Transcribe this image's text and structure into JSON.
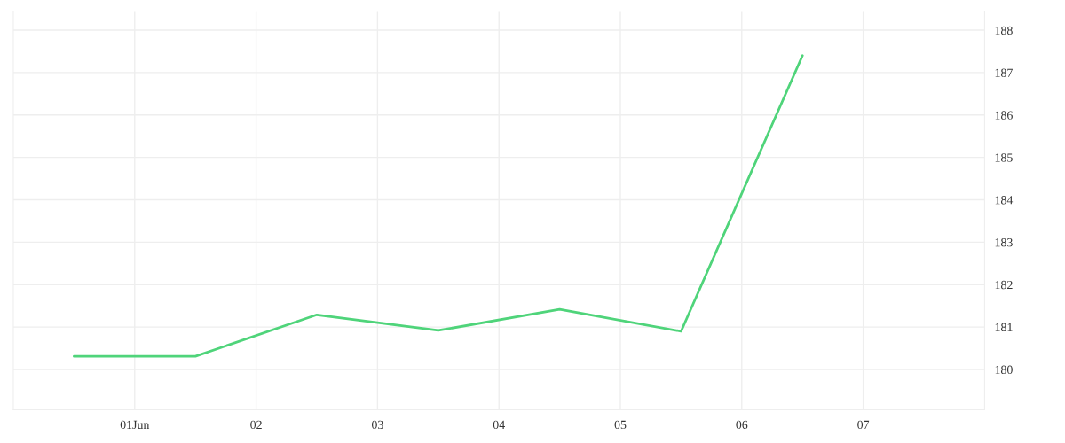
{
  "chart_data": {
    "type": "line",
    "x": [
      0.5,
      1.5,
      2.5,
      3.5,
      4.5,
      5.5,
      6.5
    ],
    "series": [
      {
        "color": "#4fd47a",
        "values": [
          180.31,
          180.31,
          181.29,
          180.92,
          181.42,
          180.9,
          187.4
        ]
      }
    ],
    "xlim": [
      0,
      8
    ],
    "xticks": [
      {
        "value": 1,
        "label": "01Jun"
      },
      {
        "value": 2,
        "label": "02"
      },
      {
        "value": 3,
        "label": "03"
      },
      {
        "value": 4,
        "label": "04"
      },
      {
        "value": 5,
        "label": "05"
      },
      {
        "value": 6,
        "label": "06"
      },
      {
        "value": 7,
        "label": "07"
      }
    ],
    "ylim": [
      179.05,
      188.45
    ],
    "yticks": [
      180,
      181,
      182,
      183,
      184,
      185,
      186,
      187,
      188
    ],
    "grid": true,
    "marker": "none",
    "line_style": "solid"
  }
}
